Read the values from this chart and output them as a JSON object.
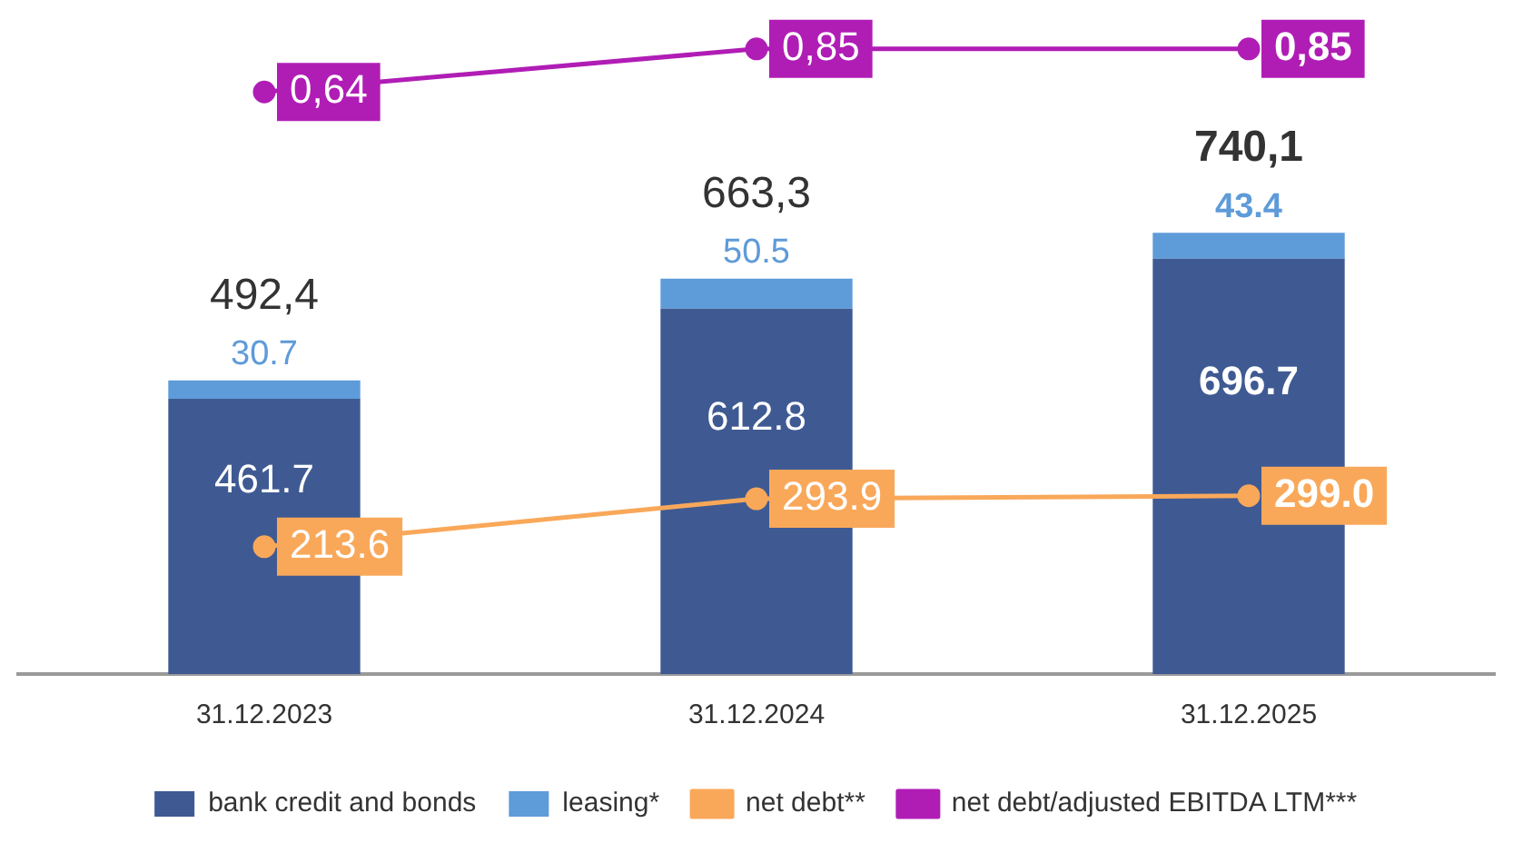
{
  "chart_data": {
    "type": "bar",
    "categories": [
      "31.12.2023",
      "31.12.2024",
      "31.12.2025"
    ],
    "stacked": true,
    "legend": "bottom",
    "grid": false,
    "tick_labels": "x",
    "marker": "circle",
    "ylim": [
      0,
      1100
    ],
    "y2lim": [
      -2.2,
      1.0
    ],
    "series": [
      {
        "name": "bank credit and bonds",
        "color": "#3f5a93",
        "values": [
          461.7,
          612.8,
          696.7
        ],
        "value_labels": [
          "461.7",
          "612.8",
          "696.7"
        ]
      },
      {
        "name": "leasing*",
        "color": "#5e9bd9",
        "values": [
          30.7,
          50.5,
          43.4
        ],
        "value_labels": [
          "30.7",
          "50.5",
          "43.4"
        ]
      },
      {
        "name": "net debt**",
        "type": "line",
        "color": "#f9a85a",
        "values": [
          213.6,
          293.9,
          299.0
        ],
        "value_labels": [
          "213.6",
          "293.9",
          "299.0"
        ]
      },
      {
        "name": "net debt/adjusted EBITDA LTM***",
        "type": "line",
        "axis": "y2",
        "color": "#b01db5",
        "values": [
          0.64,
          0.85,
          0.85
        ],
        "value_labels": [
          "0,64",
          "0,85",
          "0,85"
        ]
      }
    ],
    "totals": [
      "492,4",
      "663,3",
      "740,1"
    ]
  }
}
